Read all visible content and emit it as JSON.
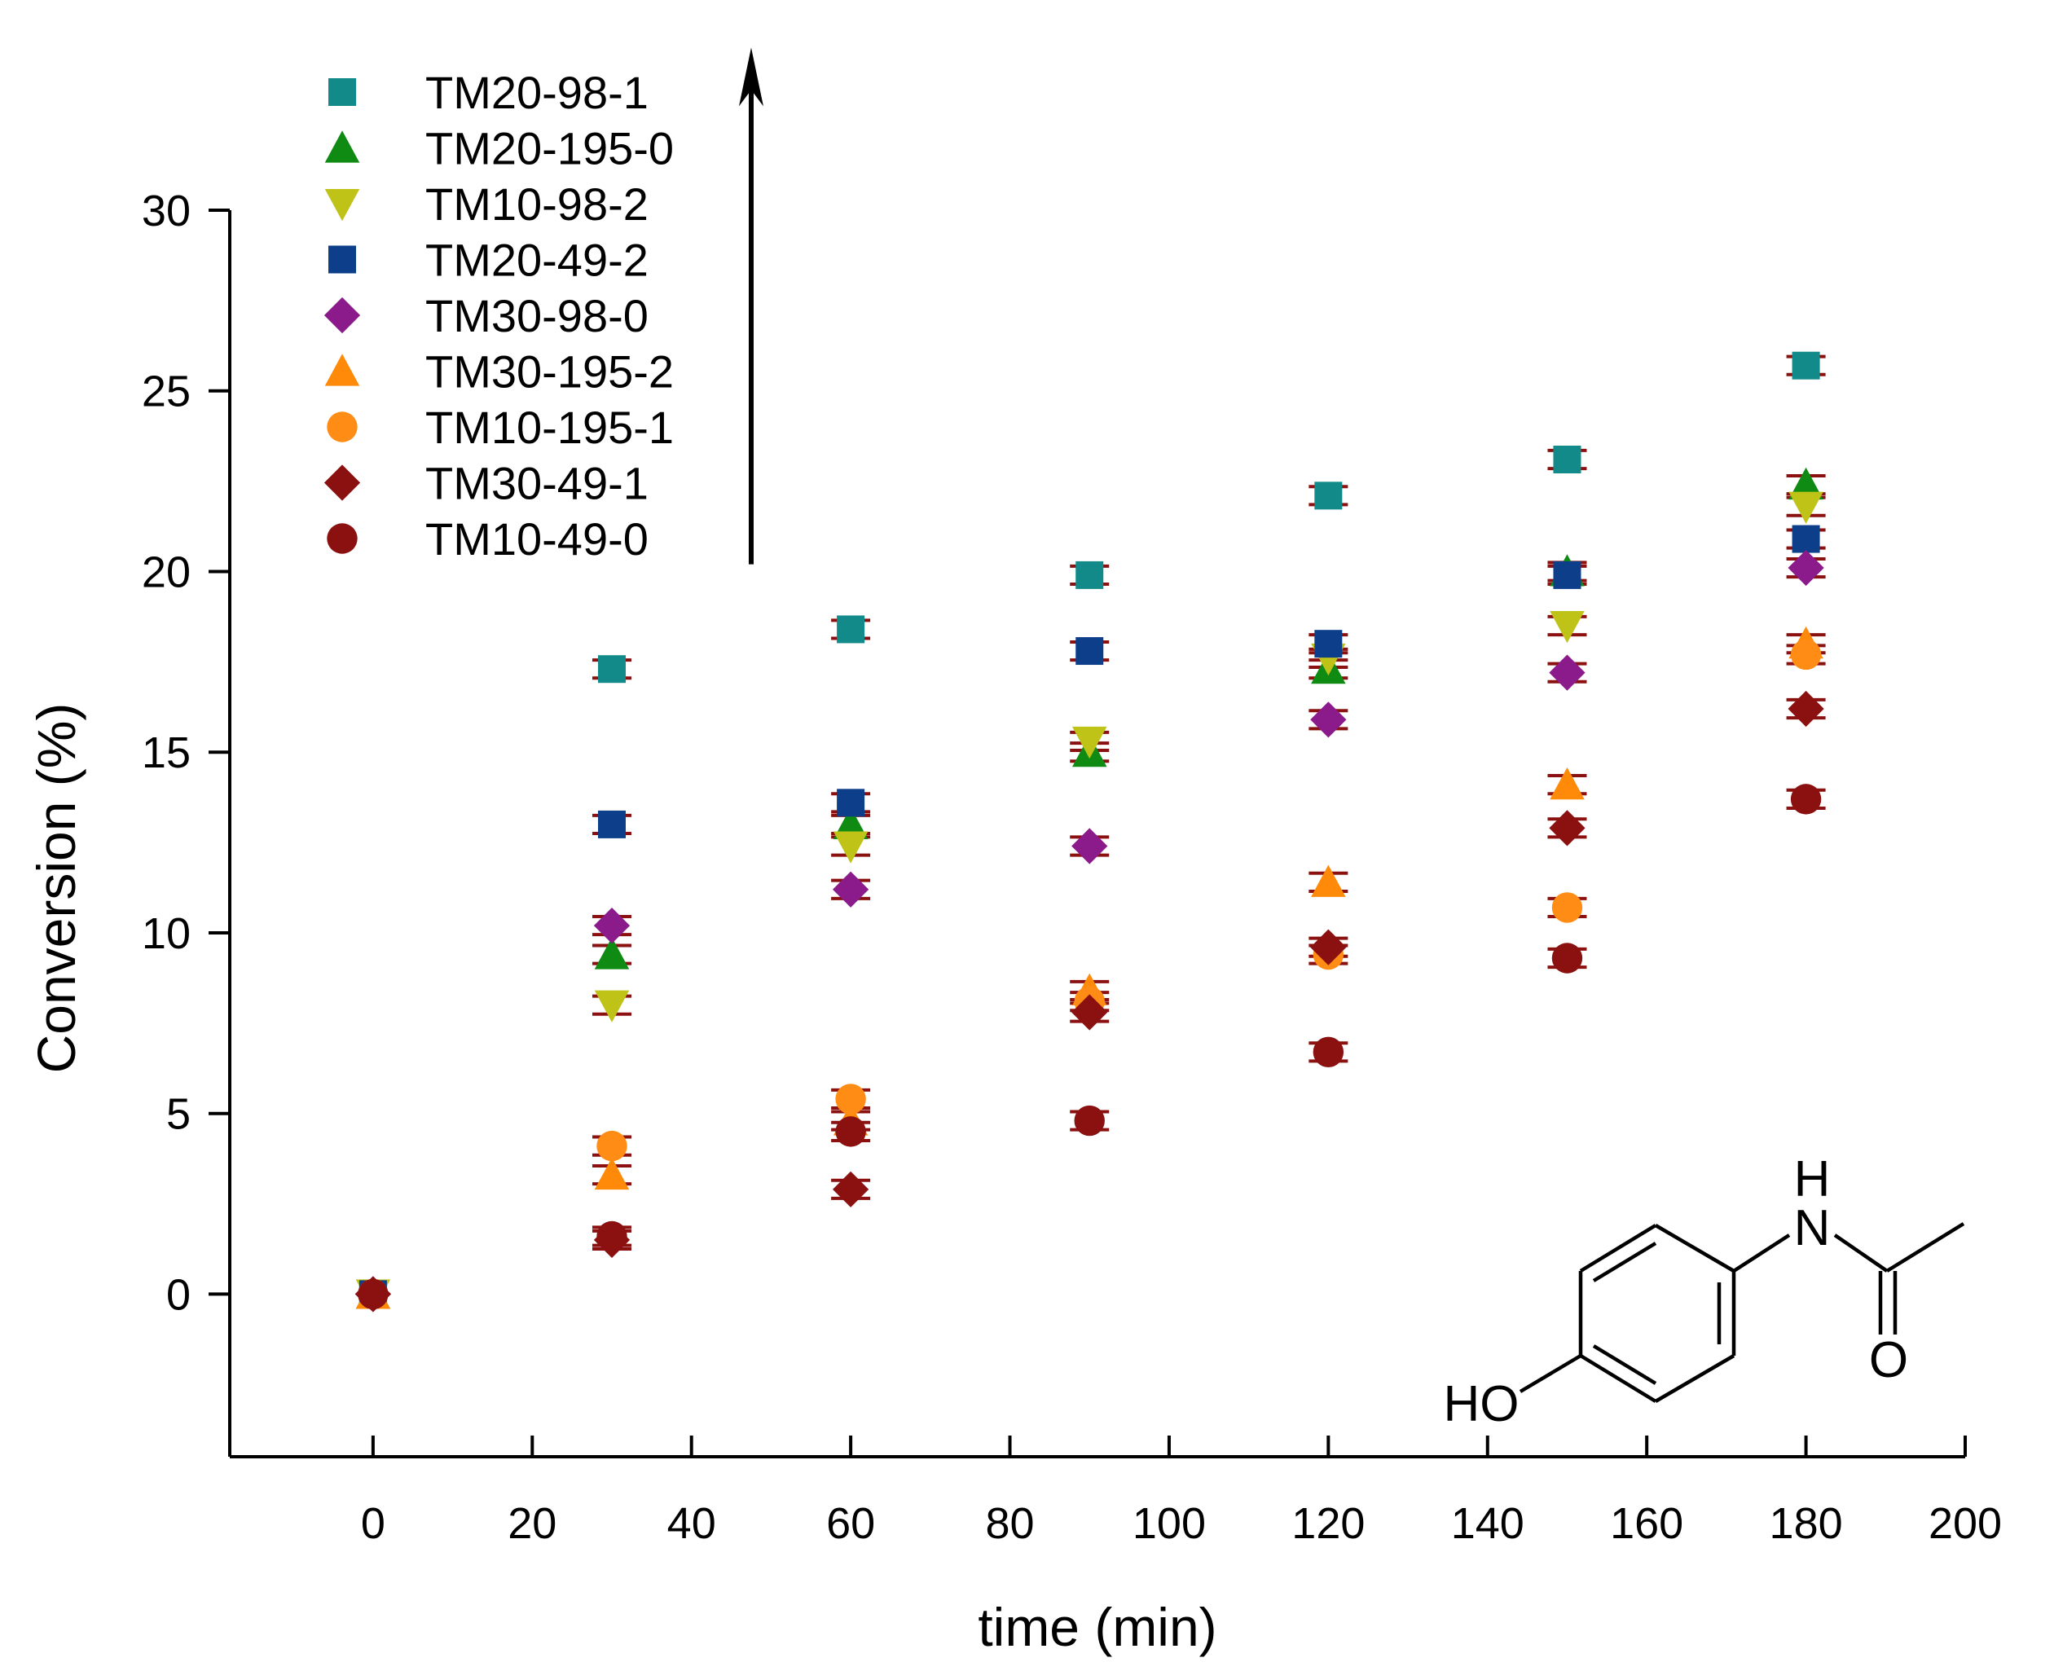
{
  "chart_data": {
    "type": "scatter",
    "title": "",
    "xlabel": "time (min)",
    "ylabel": "Conversion (%)",
    "xlim": [
      -18,
      200
    ],
    "ylim": [
      -4.5,
      30
    ],
    "xticks": [
      0,
      20,
      40,
      60,
      80,
      100,
      120,
      140,
      160,
      180,
      200
    ],
    "yticks": [
      0,
      5,
      10,
      15,
      20,
      25,
      30
    ],
    "grid": false,
    "legend_position": "top-left",
    "x": [
      0,
      30,
      60,
      90,
      120,
      150,
      180
    ],
    "series": [
      {
        "name": "TM20-98-1",
        "marker": "square",
        "color": "#138a8a",
        "values": [
          0,
          17.3,
          18.4,
          19.9,
          22.1,
          23.1,
          25.7
        ]
      },
      {
        "name": "TM20-195-0",
        "marker": "triangle-up",
        "color": "#0f8a12",
        "values": [
          0,
          9.4,
          13.0,
          15.0,
          17.3,
          20.0,
          22.4
        ]
      },
      {
        "name": "TM10-98-2",
        "marker": "triangle-down",
        "color": "#bfc318",
        "values": [
          0,
          8.0,
          12.4,
          15.3,
          17.6,
          18.5,
          21.8
        ]
      },
      {
        "name": "TM20-49-2",
        "marker": "square",
        "color": "#0c3e8a",
        "values": [
          0,
          13.0,
          13.6,
          17.8,
          18.0,
          19.9,
          20.9
        ]
      },
      {
        "name": "TM30-98-0",
        "marker": "diamond",
        "color": "#8b1a8b",
        "values": [
          0,
          10.2,
          11.2,
          12.4,
          15.9,
          17.2,
          20.1
        ]
      },
      {
        "name": "TM30-195-2",
        "marker": "triangle-up",
        "color": "#ff8a0a",
        "values": [
          0,
          3.3,
          4.8,
          8.4,
          11.4,
          14.1,
          18.0
        ]
      },
      {
        "name": "TM10-195-1",
        "marker": "circle",
        "color": "#ff8c14",
        "values": [
          0,
          4.1,
          5.4,
          8.1,
          9.4,
          10.7,
          17.7
        ]
      },
      {
        "name": "TM30-49-1",
        "marker": "diamond",
        "color": "#8b1010",
        "values": [
          0,
          1.5,
          2.9,
          7.8,
          9.6,
          12.9,
          16.2
        ]
      },
      {
        "name": "TM10-49-0",
        "marker": "circle",
        "color": "#8b1010",
        "values": [
          0,
          1.6,
          4.5,
          4.8,
          6.7,
          9.3,
          13.7
        ]
      }
    ],
    "error_bar": 0.25,
    "error_bar_color": "#8b1010",
    "annotations": {
      "arrow": {
        "x": 47.5,
        "y_from": 20.2,
        "y_to": 34.5
      },
      "molecule_labels": [
        "H",
        "N",
        "O",
        "HO"
      ]
    }
  }
}
